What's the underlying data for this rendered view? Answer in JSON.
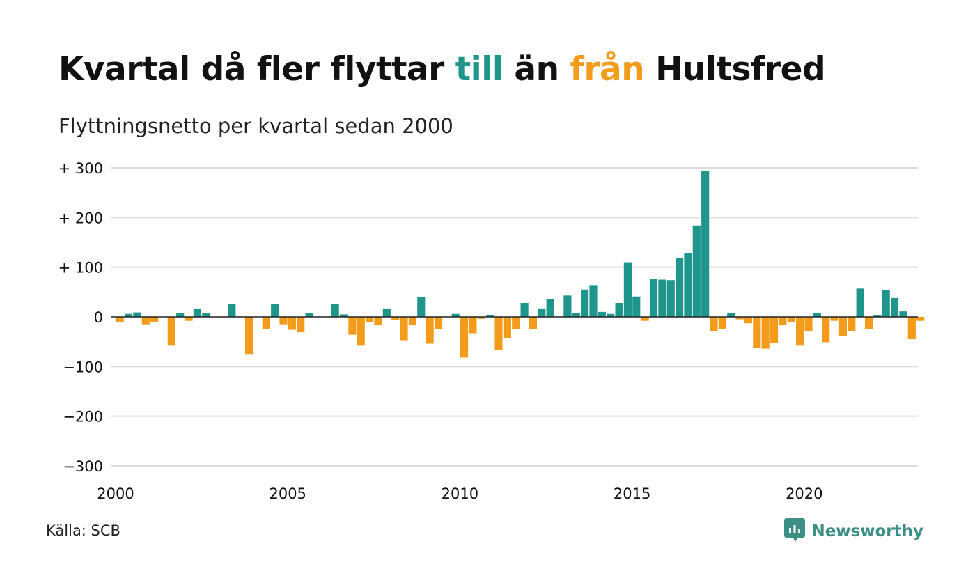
{
  "title": {
    "part1": "Kvartal då fler flyttar ",
    "word_to": "till",
    "part2": " än ",
    "word_from": "från",
    "part3": " Hultsfred"
  },
  "subtitle": "Flyttningsnetto per kvartal sedan 2000",
  "source": "Källa: SCB",
  "brand": {
    "name": "Newsworthy",
    "icon": "newsworthy-logo-icon"
  },
  "colors": {
    "positive": "#1f968b",
    "negative": "#f39c1c",
    "gridline": "#dddddd",
    "zero_line": "#222222",
    "text": "#111111",
    "brand": "#3d8f86"
  },
  "chart_data": {
    "type": "bar",
    "x_start": 2000,
    "x_step": "quarter",
    "ylim": [
      -300,
      300
    ],
    "y_ticks": [
      300,
      200,
      100,
      0,
      -100,
      -200,
      -300
    ],
    "y_tick_labels": [
      "+ 300",
      "+ 200",
      "+ 100",
      "0",
      "−100",
      "−200",
      "−300"
    ],
    "x_ticks": [
      2000,
      2005,
      2010,
      2015,
      2020
    ],
    "x_tick_labels": [
      "2000",
      "2005",
      "2010",
      "2015",
      "2020"
    ],
    "grid": true,
    "legend": "none",
    "values": [
      -10,
      6,
      9,
      -15,
      -10,
      0,
      -58,
      8,
      -8,
      17,
      8,
      0,
      -1,
      26,
      0,
      -76,
      0,
      -24,
      26,
      -15,
      -26,
      -31,
      8,
      0,
      0,
      26,
      5,
      -36,
      -58,
      -10,
      -17,
      17,
      -6,
      -47,
      -17,
      40,
      -54,
      -24,
      0,
      6,
      -82,
      -33,
      -4,
      4,
      -66,
      -43,
      -24,
      28,
      -24,
      17,
      35,
      0,
      43,
      8,
      55,
      64,
      10,
      6,
      28,
      110,
      41,
      -8,
      76,
      75,
      74,
      119,
      128,
      184,
      293,
      -29,
      -24,
      8,
      -5,
      -13,
      -63,
      -64,
      -52,
      -17,
      -11,
      -58,
      -28,
      7,
      -51,
      -8,
      -39,
      -29,
      57,
      -24,
      3,
      54,
      38,
      11,
      -45,
      -8
    ]
  }
}
